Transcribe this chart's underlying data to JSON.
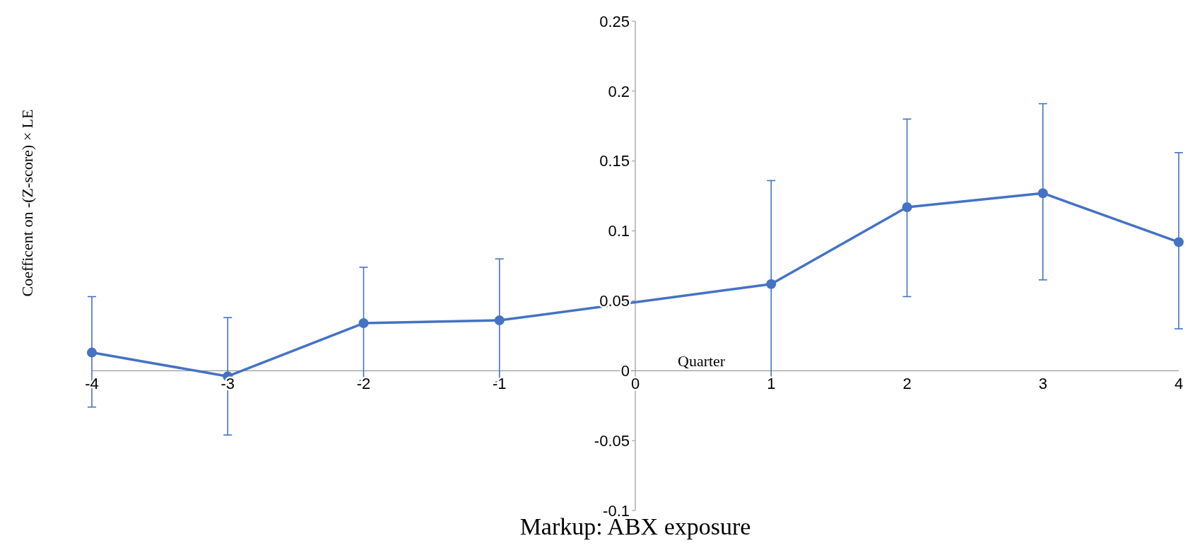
{
  "chart_data": {
    "type": "line",
    "title": "Markup: ABX exposure",
    "xlabel": "Quarter",
    "ylabel": "Coefficent on -(Z-score) × LE",
    "x": [
      -4,
      -3,
      -2,
      -1,
      1,
      2,
      3,
      4
    ],
    "series": [
      {
        "color": "#4472c4",
        "values": [
          0.013,
          -0.004,
          0.034,
          0.036,
          0.062,
          0.117,
          0.127,
          0.092
        ],
        "errors": [
          [
            -0.026,
            0.053
          ],
          [
            -0.046,
            0.038
          ],
          [
            -0.007,
            0.074
          ],
          [
            -0.008,
            0.08
          ],
          [
            -0.012,
            0.136
          ],
          [
            0.053,
            0.18
          ],
          [
            0.065,
            0.191
          ],
          [
            0.03,
            0.156
          ]
        ]
      }
    ],
    "xlim": [
      -4,
      4
    ],
    "xticks": [
      -4,
      -3,
      -2,
      -1,
      0,
      1,
      2,
      3,
      4
    ],
    "ylim": [
      -0.1,
      0.25
    ],
    "yticks": [
      -0.1,
      -0.05,
      0,
      0.05,
      0.1,
      0.15,
      0.2,
      0.25
    ],
    "grid": false,
    "marker": "circle",
    "line_style": "solid"
  }
}
